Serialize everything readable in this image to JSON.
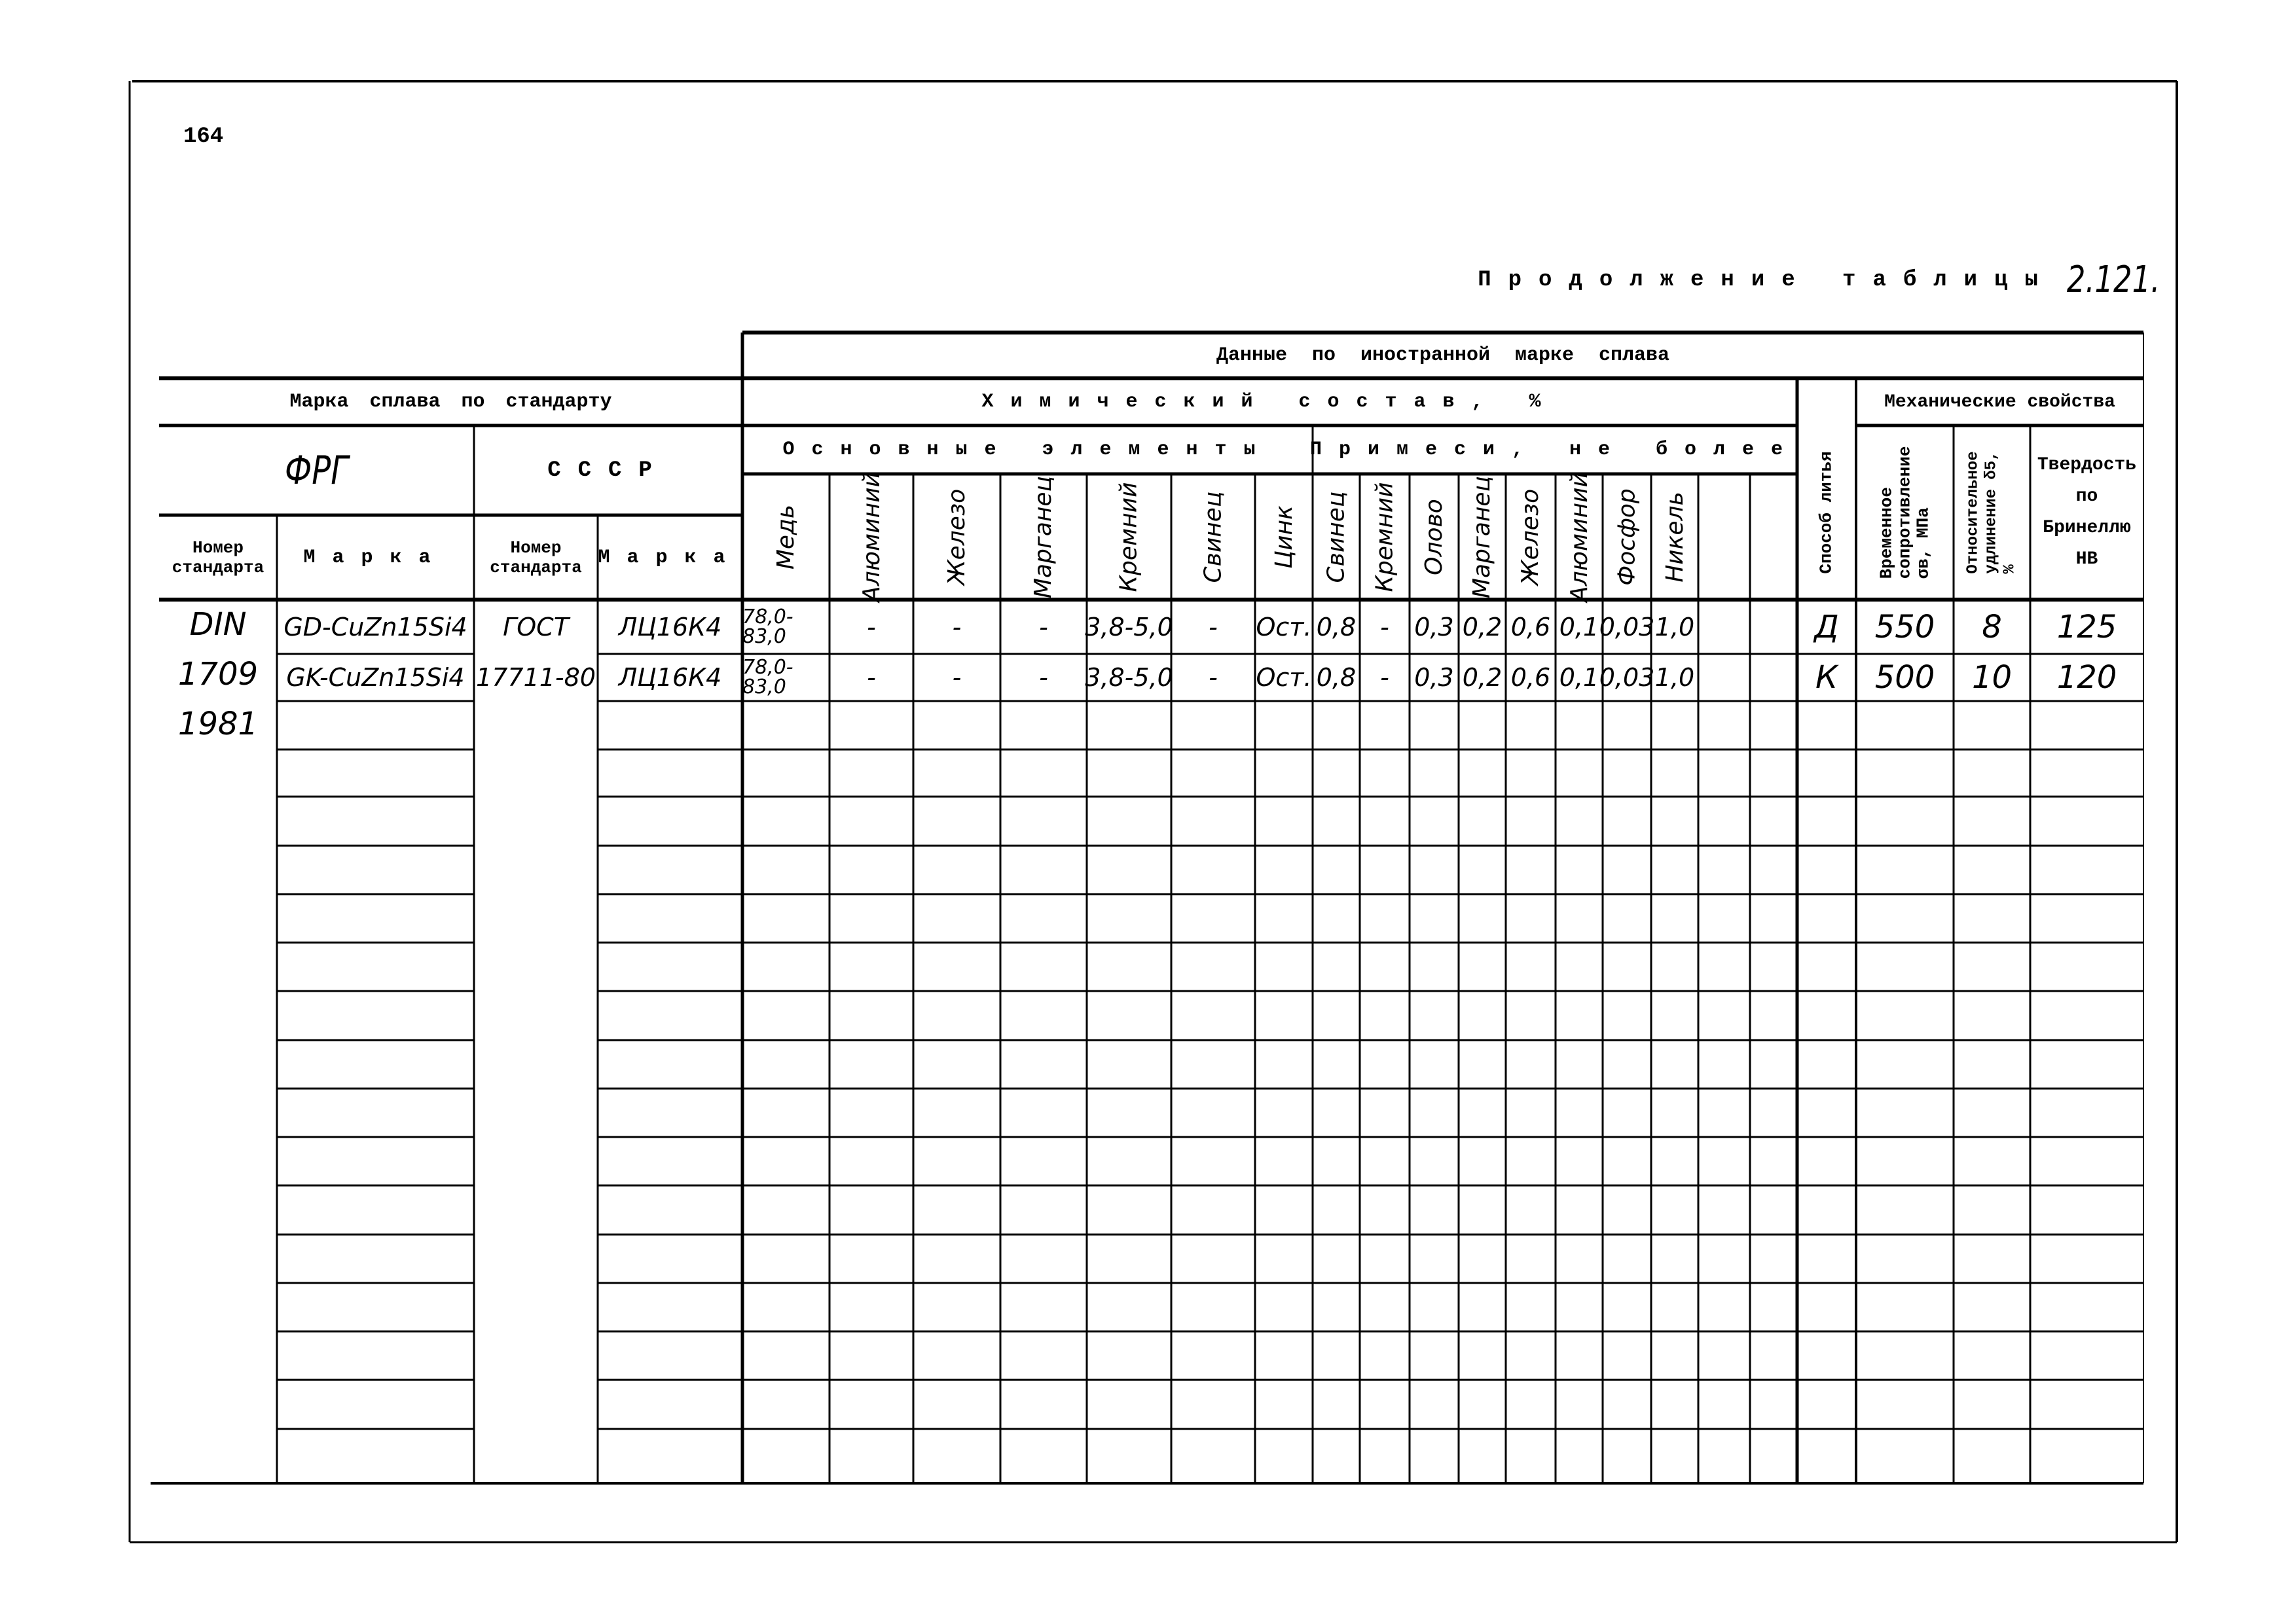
{
  "page_number": "164",
  "continuation_title": "Продолжение таблицы",
  "table_number": "2.121.",
  "header": {
    "foreign_data": "Данные по иностранной марке сплава",
    "grade_by_standard": "Марка сплава по стандарту",
    "frg": "ФРГ",
    "ussr": "СССР",
    "frg_standard_number": "Номер стандарта",
    "frg_grade": "Марка",
    "ussr_standard_number": "Номер стандарта",
    "ussr_grade": "Марка",
    "chemical_composition": "Химический состав, %",
    "main_elements": "Основные элементы",
    "impurities": "Примеси, не более",
    "casting_method": "Способ литья",
    "mechanical_properties": "Механические свойства",
    "tensile_strength": "Временное сопротивление σв, МПа",
    "elongation": "Относительное удлинение δ5, %",
    "hardness": "Твердость по Бринеллю НВ"
  },
  "main_element_columns": [
    "Медь",
    "Алюминий",
    "Железо",
    "Марганец",
    "Кремний",
    "Свинец",
    "Цинк"
  ],
  "impurity_columns": [
    "Свинец",
    "Кремний",
    "Олово",
    "Марганец",
    "Железо",
    "Алюминий",
    "Фосфор",
    "Никель",
    "",
    ""
  ],
  "frg_standard": [
    "DIN",
    "1709",
    "1981"
  ],
  "rows": [
    {
      "frg_grade": "GD-CuZn15Si4",
      "ussr_standard": "ГОСТ",
      "ussr_grade": "ЛЦ16К4",
      "main": [
        "78,0-83,0",
        "-",
        "-",
        "-",
        "3,8-5,0",
        "-",
        "Ост."
      ],
      "impurities": [
        "0,8",
        "-",
        "0,3",
        "0,2",
        "0,6",
        "0,1",
        "0,03",
        "1,0",
        "",
        ""
      ],
      "casting_method": "Д",
      "tensile_strength": "550",
      "elongation": "8",
      "hardness": "125"
    },
    {
      "frg_grade": "GK-CuZn15Si4",
      "ussr_standard": "17711-80",
      "ussr_grade": "ЛЦ16К4",
      "main": [
        "78,0-83,0",
        "-",
        "-",
        "-",
        "3,8-5,0",
        "-",
        "Ост."
      ],
      "impurities": [
        "0,8",
        "-",
        "0,3",
        "0,2",
        "0,6",
        "0,1",
        "0,03",
        "1,0",
        "",
        ""
      ],
      "casting_method": "К",
      "tensile_strength": "500",
      "elongation": "10",
      "hardness": "120"
    }
  ]
}
